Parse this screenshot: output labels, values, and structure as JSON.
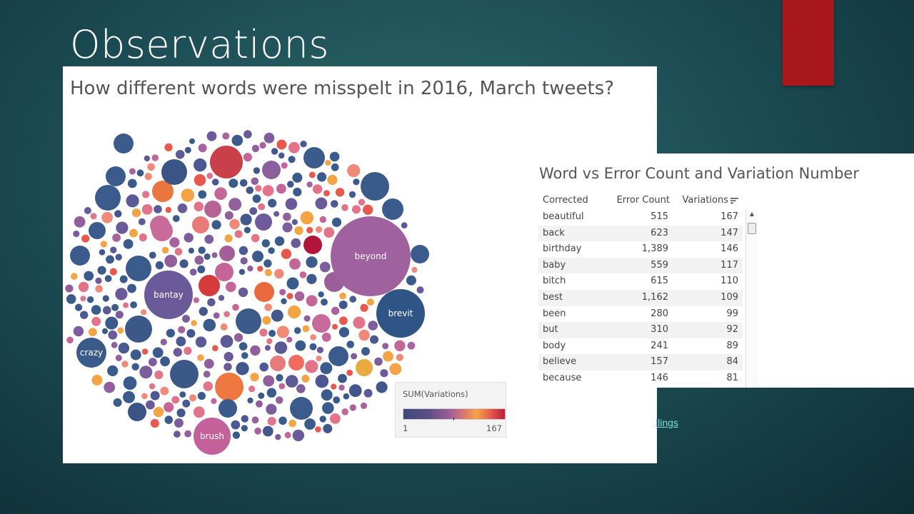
{
  "slide": {
    "title": "Observations",
    "link_fragment": "llings"
  },
  "bubble_chart": {
    "title": "How different words were misspelt in 2016, March tweets?",
    "legend": {
      "title": "SUM(Variations)",
      "min": "1",
      "max": "167"
    },
    "labeled_bubbles": [
      {
        "word": "beyond"
      },
      {
        "word": "bantay"
      },
      {
        "word": "brevit"
      },
      {
        "word": "crazy"
      },
      {
        "word": "brush"
      }
    ],
    "colors": {
      "low": "#3b4a78",
      "mid_purple": "#9a5e96",
      "mid_orange": "#f4a444",
      "high": "#b71d3a"
    }
  },
  "table": {
    "title": "Word vs Error Count and Variation Number",
    "headers": {
      "word": "Corrected",
      "error_count": "Error Count",
      "variations": "Variations"
    },
    "sort_icon": "sort-descending-icon",
    "rows": [
      {
        "word": "beautiful",
        "error_count": "515",
        "variations": "167"
      },
      {
        "word": "back",
        "error_count": "623",
        "variations": "147"
      },
      {
        "word": "birthday",
        "error_count": "1,389",
        "variations": "146"
      },
      {
        "word": "baby",
        "error_count": "559",
        "variations": "117"
      },
      {
        "word": "bitch",
        "error_count": "615",
        "variations": "110"
      },
      {
        "word": "best",
        "error_count": "1,162",
        "variations": "109"
      },
      {
        "word": "been",
        "error_count": "280",
        "variations": "99"
      },
      {
        "word": "but",
        "error_count": "310",
        "variations": "92"
      },
      {
        "word": "body",
        "error_count": "241",
        "variations": "89"
      },
      {
        "word": "believe",
        "error_count": "157",
        "variations": "84"
      },
      {
        "word": "because",
        "error_count": "146",
        "variations": "81"
      }
    ]
  }
}
